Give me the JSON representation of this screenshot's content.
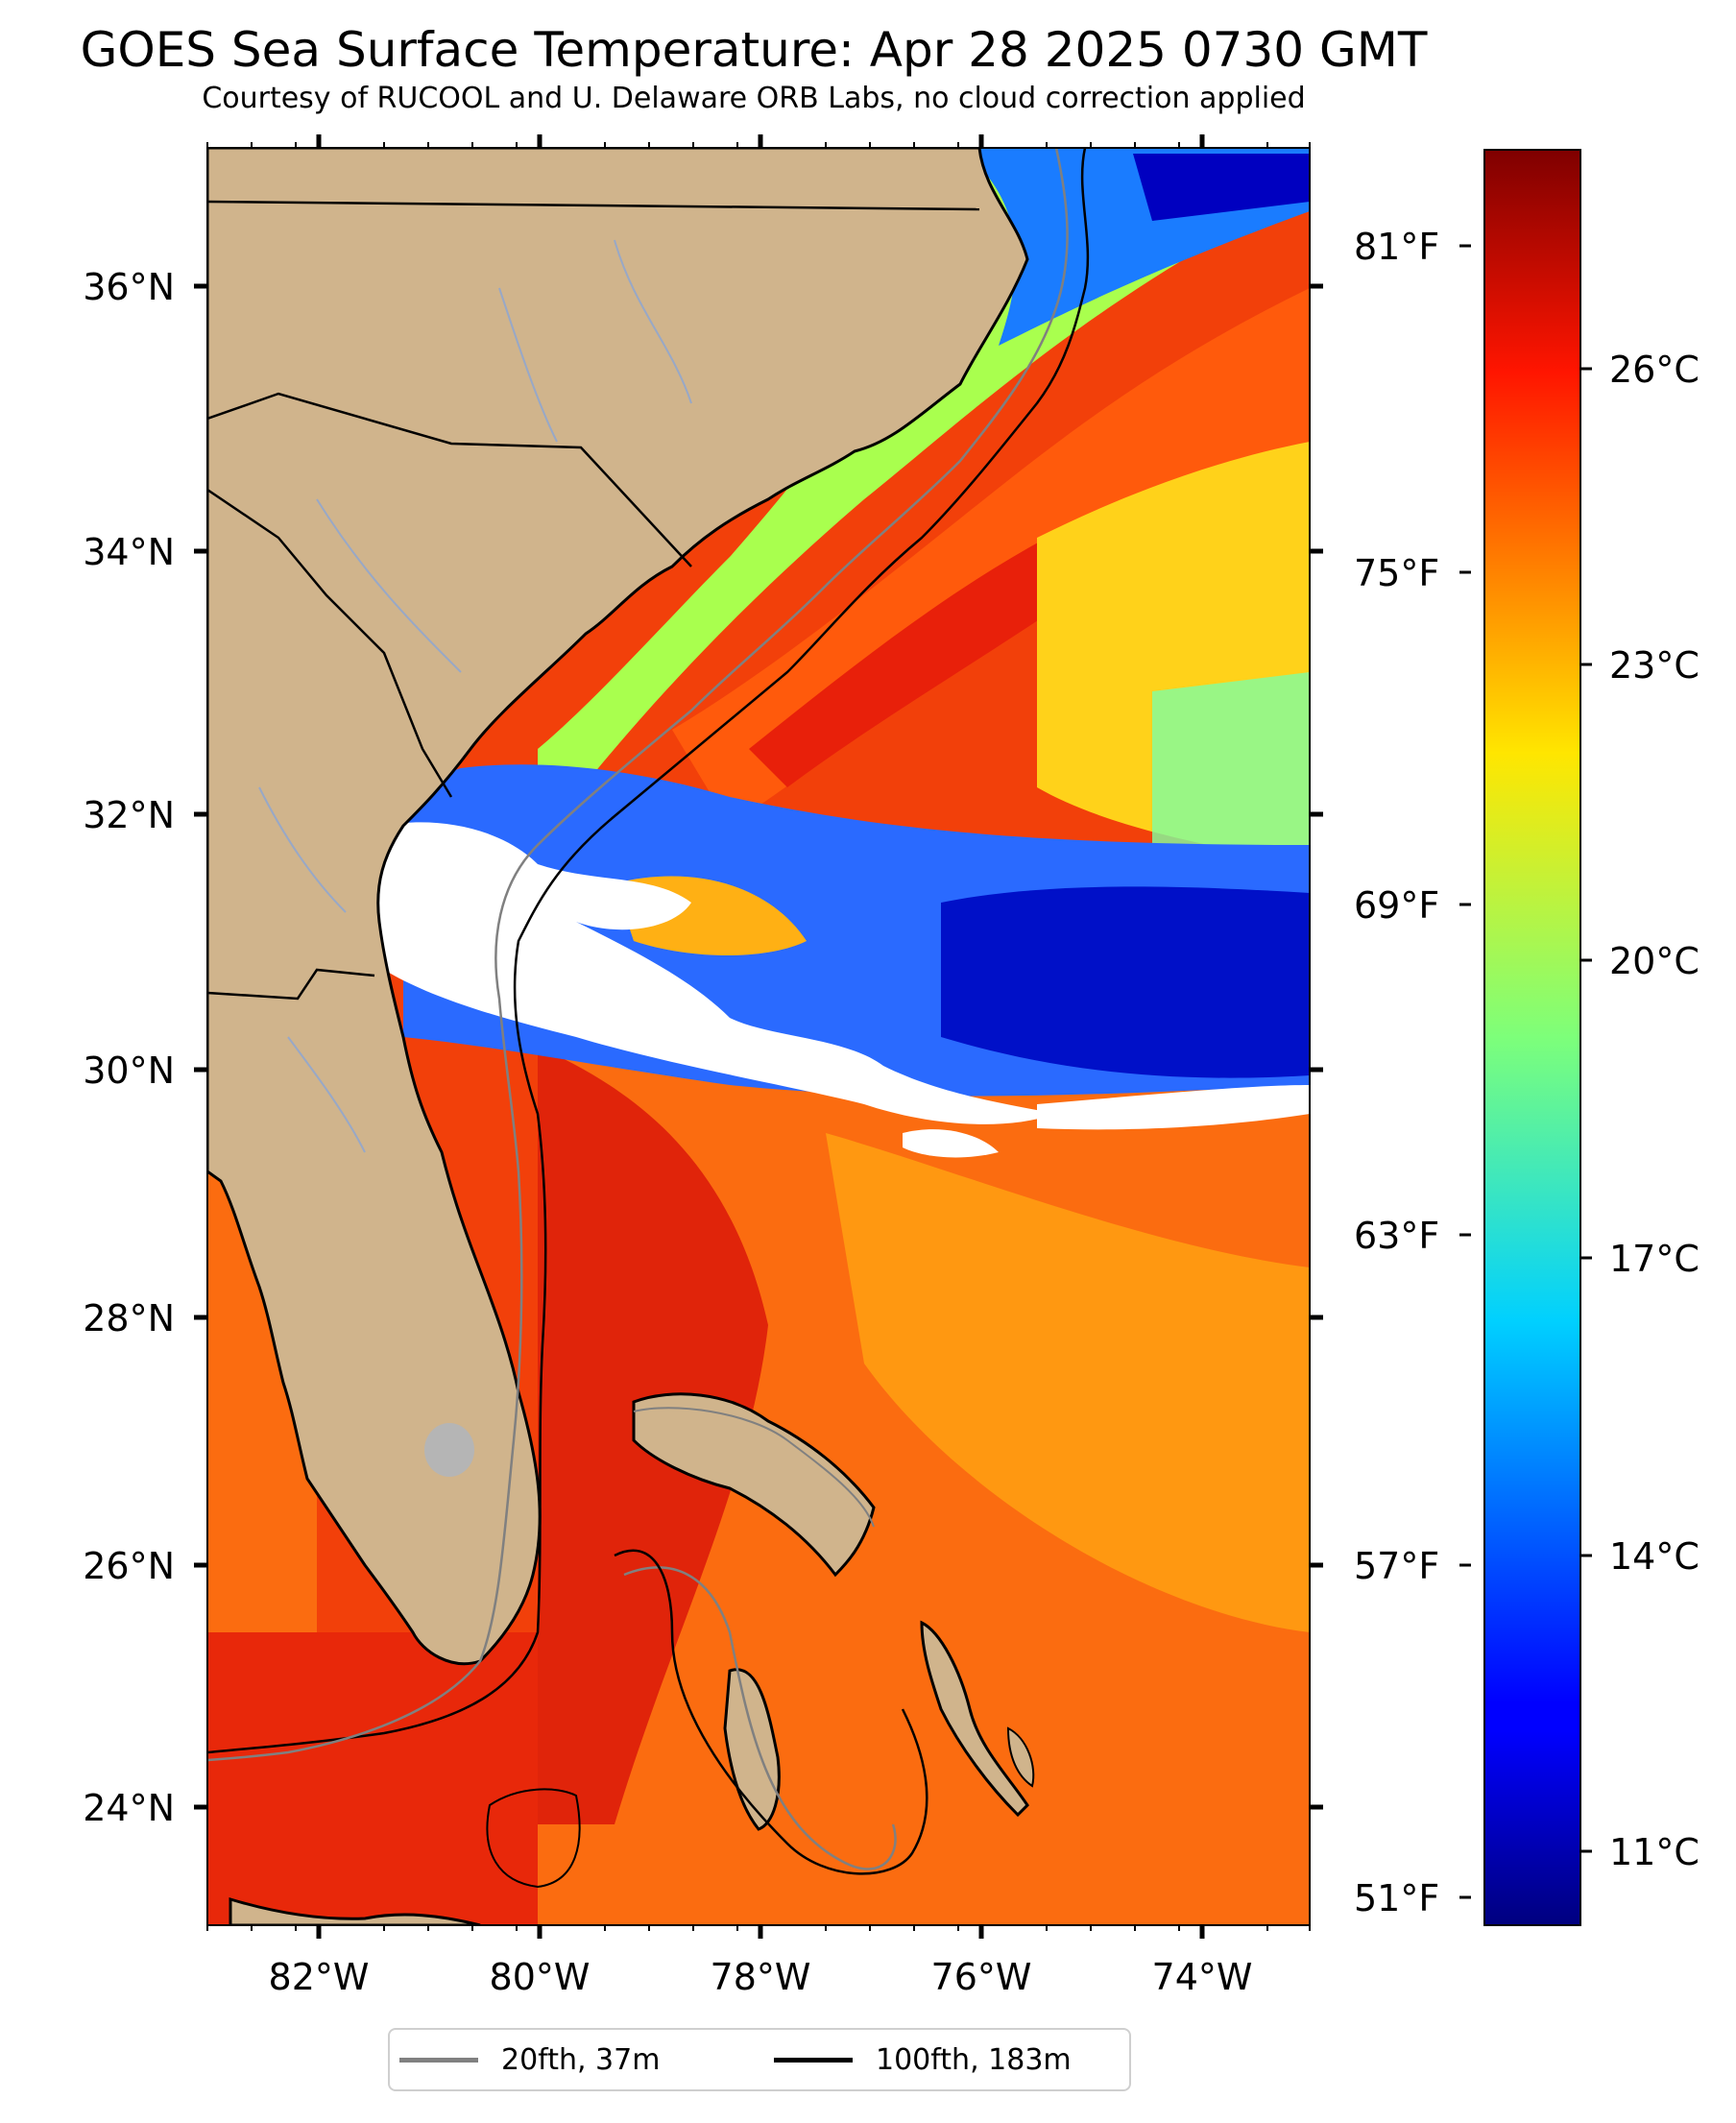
{
  "title": "GOES Sea Surface Temperature: Apr 28 2025 0730 GMT",
  "subtitle": "Courtesy of RUCOOL and U. Delaware ORB Labs, no cloud correction applied",
  "map": {
    "lat_range": [
      23.1,
      37.0
    ],
    "lon_range": [
      -83.0,
      -73.0
    ],
    "lat_ticks": [
      "24°N",
      "26°N",
      "28°N",
      "30°N",
      "32°N",
      "34°N",
      "36°N"
    ],
    "lon_ticks": [
      "82°W",
      "80°W",
      "78°W",
      "76°W",
      "74°W"
    ],
    "fahrenheit_ticks": [
      "81°F",
      "75°F",
      "69°F",
      "63°F",
      "57°F",
      "51°F"
    ],
    "land_color": "#d0b48c",
    "cloud_color": "#ffffff"
  },
  "colorbar": {
    "colormap": "jet",
    "range_celsius": [
      10.0,
      28.0
    ],
    "tick_labels": [
      "26°C",
      "23°C",
      "20°C",
      "17°C",
      "14°C",
      "11°C"
    ]
  },
  "legend": {
    "items": [
      {
        "label": "20fth, 37m",
        "color": "#808080"
      },
      {
        "label": "100fth, 183m",
        "color": "#000000"
      }
    ]
  }
}
